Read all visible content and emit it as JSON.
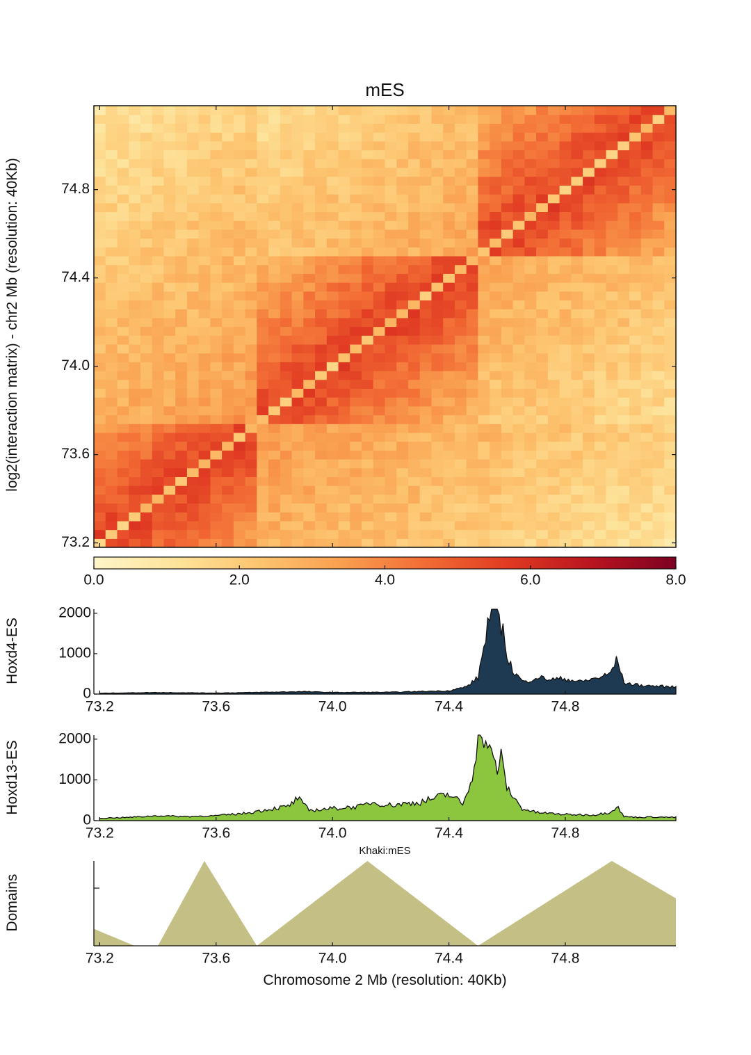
{
  "chart_data": [
    {
      "type": "heatmap",
      "title": "mES",
      "ylabel": "log2(interaction matrix) - chr2 Mb (resolution: 40Kb)",
      "ylim": [
        73.18,
        75.18
      ],
      "xlim": [
        73.18,
        75.18
      ],
      "yticks": [
        "73.2",
        "73.6",
        "74.0",
        "74.4",
        "74.8"
      ],
      "ytick_values": [
        73.2,
        73.6,
        74.0,
        74.4,
        74.8
      ],
      "resolution_kb": 40,
      "domains_mb": [
        [
          73.18,
          73.74
        ],
        [
          73.74,
          74.5
        ],
        [
          74.5,
          75.18
        ]
      ],
      "colorbar": {
        "ticks": [
          "0.0",
          "2.0",
          "4.0",
          "6.0",
          "8.0"
        ],
        "tick_values": [
          0,
          2,
          4,
          6,
          8
        ],
        "range": [
          0,
          8
        ],
        "colors": [
          "#fff5c8",
          "#fde39a",
          "#fdc46f",
          "#f99e4f",
          "#f26b34",
          "#e03a22",
          "#b8141f",
          "#7d0022"
        ]
      }
    },
    {
      "type": "area",
      "ylabel": "Hoxd4-ES",
      "color": "#1d3a52",
      "xlim": [
        73.18,
        75.18
      ],
      "ylim": [
        0,
        2100
      ],
      "yticks": [
        "0",
        "1000",
        "2000"
      ],
      "ytick_values": [
        0,
        1000,
        2000
      ],
      "xticks": [
        "73.2",
        "73.6",
        "74.0",
        "74.4",
        "74.8"
      ],
      "xtick_values": [
        73.2,
        73.6,
        74.0,
        74.4,
        74.8
      ],
      "x": [
        73.2,
        73.4,
        73.6,
        73.9,
        74.0,
        74.2,
        74.4,
        74.46,
        74.5,
        74.52,
        74.53,
        74.55,
        74.57,
        74.6,
        74.62,
        74.66,
        74.7,
        74.75,
        74.8,
        74.85,
        74.9,
        74.95,
        74.98,
        75.0,
        75.05,
        75.1,
        75.18
      ],
      "values": [
        20,
        40,
        25,
        60,
        40,
        45,
        80,
        180,
        400,
        1150,
        1650,
        2100,
        2100,
        1000,
        550,
        280,
        420,
        360,
        380,
        300,
        380,
        480,
        870,
        280,
        220,
        200,
        170
      ]
    },
    {
      "type": "area",
      "ylabel": "Hoxd13-ES",
      "color": "#8cc63e",
      "xlim": [
        73.18,
        75.18
      ],
      "ylim": [
        0,
        2100
      ],
      "yticks": [
        "0",
        "1000",
        "2000"
      ],
      "ytick_values": [
        0,
        1000,
        2000
      ],
      "xticks": [
        "73.2",
        "73.6",
        "74.0",
        "74.4",
        "74.8"
      ],
      "xtick_values": [
        73.2,
        73.6,
        74.0,
        74.4,
        74.8
      ],
      "x": [
        73.2,
        73.3,
        73.4,
        73.5,
        73.6,
        73.7,
        73.8,
        73.85,
        73.88,
        73.92,
        74.0,
        74.1,
        74.13,
        74.2,
        74.3,
        74.35,
        74.4,
        74.45,
        74.48,
        74.5,
        74.52,
        74.55,
        74.57,
        74.58,
        74.6,
        74.65,
        74.7,
        74.8,
        74.9,
        74.95,
        74.98,
        75.0,
        75.05,
        75.1,
        75.18
      ],
      "values": [
        60,
        80,
        120,
        100,
        120,
        180,
        300,
        350,
        550,
        250,
        300,
        350,
        450,
        380,
        450,
        550,
        650,
        400,
        1100,
        2100,
        2100,
        1500,
        1250,
        1550,
        800,
        300,
        200,
        150,
        140,
        200,
        350,
        100,
        80,
        90,
        80
      ]
    },
    {
      "type": "area",
      "title": "Khaki:mES",
      "ylabel": "Domains",
      "xlabel": "Chromosome 2 Mb (resolution: 40Kb)",
      "color": "#c4bf85",
      "xlim": [
        73.18,
        75.18
      ],
      "ylim": [
        0,
        1
      ],
      "xticks": [
        "73.2",
        "73.6",
        "74.0",
        "74.4",
        "74.8"
      ],
      "xtick_values": [
        73.2,
        73.6,
        74.0,
        74.4,
        74.8
      ],
      "x": [
        73.18,
        73.32,
        73.32,
        73.4,
        73.56,
        73.74,
        74.12,
        74.5,
        74.96,
        75.18
      ],
      "values": [
        0.2,
        0,
        0,
        0,
        1,
        0,
        1,
        0,
        1,
        0.56
      ]
    }
  ]
}
